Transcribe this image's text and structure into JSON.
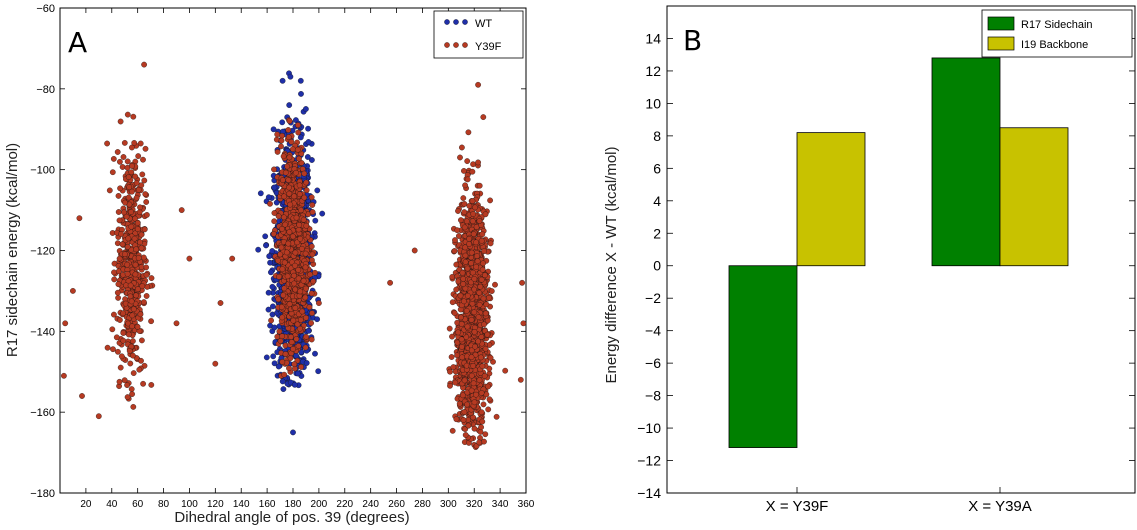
{
  "chart_data": [
    {
      "type": "scatter",
      "panel_label": "A",
      "xlabel": "Dihedral angle of pos. 39 (degrees)",
      "ylabel": "R17 sidechain energy (kcal/mol)",
      "xlim": [
        0,
        360
      ],
      "ylim": [
        -180,
        -60
      ],
      "xticks": [
        20,
        40,
        60,
        80,
        100,
        120,
        140,
        160,
        180,
        200,
        220,
        240,
        260,
        280,
        300,
        320,
        340,
        360
      ],
      "yticks": [
        -180,
        -160,
        -140,
        -120,
        -100,
        -80,
        -60
      ],
      "legend_position": "top-right",
      "grid": false,
      "series": [
        {
          "name": "WT",
          "color": "#1f2fa8",
          "clusters": [
            {
              "x_center": 180,
              "x_spread": 13,
              "y_center": -122,
              "y_spread": 14,
              "y_range": [
                -155,
                -76
              ],
              "count": 1300
            }
          ],
          "outliers": [
            [
              180,
              -165
            ],
            [
              178,
              -77
            ],
            [
              172,
              -78
            ],
            [
              186,
              -78
            ],
            [
              190,
              -85
            ],
            [
              165,
              -90
            ]
          ]
        },
        {
          "name": "Y39F",
          "color": "#b63a22",
          "clusters": [
            {
              "x_center": 55,
              "x_spread": 10,
              "y_center": -123,
              "y_spread": 14,
              "y_range": [
                -161,
                -80
              ],
              "count": 520
            },
            {
              "x_center": 180,
              "x_spread": 11,
              "y_center": -120,
              "y_spread": 13,
              "y_range": [
                -152,
                -87
              ],
              "count": 900
            },
            {
              "x_center": 318,
              "x_spread": 11,
              "y_center": -137,
              "y_spread": 14,
              "y_range": [
                -169,
                -90
              ],
              "count": 1500
            }
          ],
          "outliers": [
            [
              65,
              -74
            ],
            [
              323,
              -79
            ],
            [
              327,
              -87
            ],
            [
              4,
              -138
            ],
            [
              3,
              -151
            ],
            [
              10,
              -130
            ],
            [
              17,
              -156
            ],
            [
              100,
              -122
            ],
            [
              90,
              -138
            ],
            [
              120,
              -148
            ],
            [
              133,
              -122
            ],
            [
              124,
              -133
            ],
            [
              255,
              -128
            ],
            [
              274,
              -120
            ],
            [
              358,
              -138
            ],
            [
              357,
              -128
            ],
            [
              356,
              -152
            ],
            [
              30,
              -161
            ],
            [
              15,
              -112
            ],
            [
              94,
              -110
            ]
          ]
        }
      ]
    },
    {
      "type": "bar",
      "panel_label": "B",
      "xlabel": "",
      "ylabel": "Energy difference X - WT (kcal/mol)",
      "categories": [
        "X = Y39F",
        "X = Y39A"
      ],
      "ylim": [
        -14,
        16
      ],
      "yticks": [
        -14,
        -12,
        -10,
        -8,
        -6,
        -4,
        -2,
        0,
        2,
        4,
        6,
        8,
        10,
        12,
        14
      ],
      "legend_position": "top-right",
      "grid": false,
      "series": [
        {
          "name": "R17 Sidechain",
          "color": "#008000",
          "values": [
            -11.2,
            12.8
          ]
        },
        {
          "name": "I19 Backbone",
          "color": "#c8c200",
          "values": [
            8.2,
            8.5
          ]
        }
      ]
    }
  ]
}
